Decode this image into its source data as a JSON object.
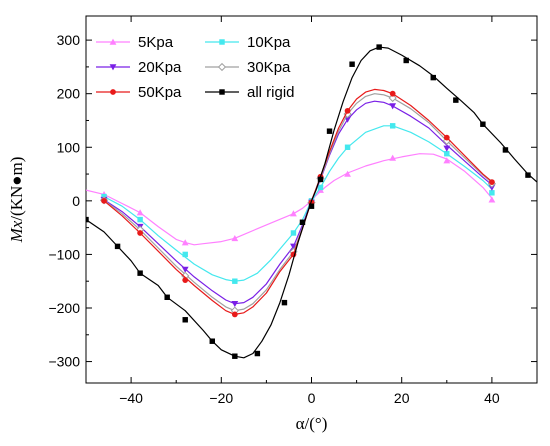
{
  "chart_data": {
    "type": "line",
    "xlabel": "α/(°)",
    "ylabel_italic": "Mx",
    "ylabel_rest": "/(KN●m)",
    "xlim": [
      -50,
      50
    ],
    "ylim": [
      -340,
      345
    ],
    "xticks": [
      -40,
      -20,
      0,
      20,
      40
    ],
    "yticks": [
      -300,
      -200,
      -100,
      0,
      100,
      200,
      300
    ],
    "grid": false,
    "legend_position": "top-left",
    "series": [
      {
        "name": "5Kpa",
        "color": "#ff80ff",
        "marker": "triangle-up",
        "curve": [
          [
            -50,
            20
          ],
          [
            -46,
            12
          ],
          [
            -42,
            -5
          ],
          [
            -38,
            -22
          ],
          [
            -34,
            -48
          ],
          [
            -30,
            -72
          ],
          [
            -28,
            -78
          ],
          [
            -26,
            -82
          ],
          [
            -24,
            -80
          ],
          [
            -20,
            -76
          ],
          [
            -17,
            -70
          ],
          [
            -12,
            -52
          ],
          [
            -8,
            -38
          ],
          [
            -4,
            -24
          ],
          [
            -2,
            -14
          ],
          [
            0,
            0
          ],
          [
            1,
            10
          ],
          [
            3,
            25
          ],
          [
            5,
            38
          ],
          [
            8,
            52
          ],
          [
            12,
            65
          ],
          [
            16,
            75
          ],
          [
            20,
            82
          ],
          [
            24,
            88
          ],
          [
            27,
            87
          ],
          [
            30,
            78
          ],
          [
            34,
            55
          ],
          [
            38,
            25
          ],
          [
            40,
            5
          ]
        ],
        "points": [
          [
            -46,
            12
          ],
          [
            -38,
            -22
          ],
          [
            -28,
            -78
          ],
          [
            -17,
            -70
          ],
          [
            -4,
            -24
          ],
          [
            0,
            0
          ],
          [
            2,
            20
          ],
          [
            8,
            50
          ],
          [
            18,
            80
          ],
          [
            30,
            75
          ],
          [
            40,
            2
          ]
        ]
      },
      {
        "name": "10Kpa",
        "color": "#44e8ee",
        "marker": "square",
        "curve": [
          [
            -46,
            8
          ],
          [
            -42,
            -10
          ],
          [
            -38,
            -35
          ],
          [
            -34,
            -65
          ],
          [
            -30,
            -92
          ],
          [
            -26,
            -118
          ],
          [
            -22,
            -138
          ],
          [
            -19,
            -147
          ],
          [
            -17,
            -150
          ],
          [
            -15,
            -148
          ],
          [
            -12,
            -135
          ],
          [
            -9,
            -110
          ],
          [
            -6,
            -80
          ],
          [
            -4,
            -60
          ],
          [
            -2,
            -35
          ],
          [
            0,
            0
          ],
          [
            2,
            25
          ],
          [
            4,
            55
          ],
          [
            6,
            80
          ],
          [
            8,
            100
          ],
          [
            12,
            128
          ],
          [
            16,
            140
          ],
          [
            18,
            140
          ],
          [
            22,
            128
          ],
          [
            26,
            110
          ],
          [
            30,
            88
          ],
          [
            34,
            64
          ],
          [
            38,
            38
          ],
          [
            40,
            22
          ]
        ],
        "points": [
          [
            -46,
            8
          ],
          [
            -38,
            -35
          ],
          [
            -28,
            -100
          ],
          [
            -17,
            -150
          ],
          [
            -4,
            -60
          ],
          [
            0,
            0
          ],
          [
            2,
            25
          ],
          [
            8,
            100
          ],
          [
            18,
            140
          ],
          [
            30,
            88
          ],
          [
            40,
            15
          ]
        ]
      },
      {
        "name": "20Kpa",
        "color": "#7a20e6",
        "marker": "triangle-down",
        "curve": [
          [
            -46,
            2
          ],
          [
            -42,
            -20
          ],
          [
            -38,
            -48
          ],
          [
            -34,
            -80
          ],
          [
            -30,
            -112
          ],
          [
            -26,
            -142
          ],
          [
            -22,
            -168
          ],
          [
            -19,
            -185
          ],
          [
            -17,
            -192
          ],
          [
            -15,
            -190
          ],
          [
            -13,
            -180
          ],
          [
            -10,
            -155
          ],
          [
            -7,
            -118
          ],
          [
            -4,
            -85
          ],
          [
            -2,
            -45
          ],
          [
            0,
            0
          ],
          [
            2,
            40
          ],
          [
            4,
            85
          ],
          [
            6,
            125
          ],
          [
            8,
            152
          ],
          [
            10,
            170
          ],
          [
            12,
            182
          ],
          [
            14,
            186
          ],
          [
            16,
            184
          ],
          [
            18,
            177
          ],
          [
            22,
            158
          ],
          [
            26,
            136
          ],
          [
            30,
            104
          ],
          [
            34,
            74
          ],
          [
            38,
            44
          ],
          [
            40,
            30
          ]
        ],
        "points": [
          [
            -46,
            2
          ],
          [
            -38,
            -48
          ],
          [
            -28,
            -128
          ],
          [
            -17,
            -192
          ],
          [
            -4,
            -85
          ],
          [
            0,
            -3
          ],
          [
            2,
            40
          ],
          [
            8,
            152
          ],
          [
            18,
            177
          ],
          [
            30,
            98
          ],
          [
            40,
            25
          ]
        ]
      },
      {
        "name": "30Kpa",
        "color": "#a0a0a0",
        "marker": "diamond-open",
        "curve": [
          [
            -46,
            1
          ],
          [
            -42,
            -24
          ],
          [
            -38,
            -54
          ],
          [
            -34,
            -88
          ],
          [
            -30,
            -122
          ],
          [
            -26,
            -152
          ],
          [
            -22,
            -180
          ],
          [
            -19,
            -198
          ],
          [
            -17,
            -205
          ],
          [
            -15,
            -202
          ],
          [
            -13,
            -192
          ],
          [
            -10,
            -166
          ],
          [
            -7,
            -128
          ],
          [
            -4,
            -95
          ],
          [
            -2,
            -50
          ],
          [
            0,
            0
          ],
          [
            2,
            42
          ],
          [
            4,
            88
          ],
          [
            6,
            130
          ],
          [
            8,
            162
          ],
          [
            10,
            182
          ],
          [
            12,
            195
          ],
          [
            14,
            200
          ],
          [
            16,
            198
          ],
          [
            18,
            192
          ],
          [
            22,
            172
          ],
          [
            26,
            146
          ],
          [
            30,
            112
          ],
          [
            34,
            80
          ],
          [
            38,
            48
          ],
          [
            40,
            34
          ]
        ],
        "points": [
          [
            -46,
            1
          ],
          [
            -38,
            -54
          ],
          [
            -28,
            -140
          ],
          [
            -17,
            -205
          ],
          [
            -4,
            -95
          ],
          [
            0,
            -3
          ],
          [
            2,
            42
          ],
          [
            8,
            162
          ],
          [
            18,
            192
          ],
          [
            30,
            112
          ],
          [
            40,
            32
          ]
        ]
      },
      {
        "name": "50Kpa",
        "color": "#e81a1a",
        "marker": "circle",
        "curve": [
          [
            -46,
            0
          ],
          [
            -42,
            -28
          ],
          [
            -38,
            -60
          ],
          [
            -34,
            -94
          ],
          [
            -30,
            -128
          ],
          [
            -26,
            -158
          ],
          [
            -22,
            -186
          ],
          [
            -19,
            -205
          ],
          [
            -17,
            -212
          ],
          [
            -15,
            -209
          ],
          [
            -13,
            -198
          ],
          [
            -10,
            -172
          ],
          [
            -7,
            -132
          ],
          [
            -4,
            -100
          ],
          [
            -2,
            -52
          ],
          [
            0,
            0
          ],
          [
            2,
            45
          ],
          [
            4,
            92
          ],
          [
            6,
            136
          ],
          [
            8,
            168
          ],
          [
            10,
            190
          ],
          [
            12,
            203
          ],
          [
            14,
            208
          ],
          [
            16,
            206
          ],
          [
            18,
            200
          ],
          [
            22,
            178
          ],
          [
            26,
            150
          ],
          [
            30,
            118
          ],
          [
            34,
            84
          ],
          [
            38,
            50
          ],
          [
            40,
            36
          ]
        ],
        "points": [
          [
            -46,
            0
          ],
          [
            -38,
            -60
          ],
          [
            -28,
            -148
          ],
          [
            -17,
            -212
          ],
          [
            -4,
            -100
          ],
          [
            0,
            -3
          ],
          [
            2,
            45
          ],
          [
            8,
            168
          ],
          [
            18,
            200
          ],
          [
            30,
            118
          ],
          [
            40,
            35
          ]
        ]
      },
      {
        "name": "all rigid",
        "color": "#000000",
        "marker": "square",
        "curve": [
          [
            -50,
            -35
          ],
          [
            -46,
            -58
          ],
          [
            -43,
            -85
          ],
          [
            -40,
            -112
          ],
          [
            -38,
            -135
          ],
          [
            -34,
            -158
          ],
          [
            -32,
            -180
          ],
          [
            -28,
            -205
          ],
          [
            -24,
            -242
          ],
          [
            -22,
            -262
          ],
          [
            -20,
            -278
          ],
          [
            -17,
            -290
          ],
          [
            -15,
            -293
          ],
          [
            -13,
            -285
          ],
          [
            -11,
            -262
          ],
          [
            -9,
            -232
          ],
          [
            -7,
            -190
          ],
          [
            -5,
            -138
          ],
          [
            -3,
            -78
          ],
          [
            -1,
            -25
          ],
          [
            0,
            0
          ],
          [
            1,
            20
          ],
          [
            3,
            70
          ],
          [
            5,
            132
          ],
          [
            7,
            185
          ],
          [
            9,
            230
          ],
          [
            11,
            262
          ],
          [
            13,
            280
          ],
          [
            15,
            287
          ],
          [
            17,
            285
          ],
          [
            20,
            272
          ],
          [
            24,
            252
          ],
          [
            27,
            233
          ],
          [
            30,
            210
          ],
          [
            33,
            188
          ],
          [
            36,
            165
          ],
          [
            38,
            143
          ],
          [
            42,
            108
          ],
          [
            45,
            78
          ],
          [
            48,
            50
          ],
          [
            50,
            35
          ]
        ],
        "points": [
          [
            -50,
            -35
          ],
          [
            -43,
            -85
          ],
          [
            -38,
            -135
          ],
          [
            -32,
            -180
          ],
          [
            -28,
            -222
          ],
          [
            -22,
            -262
          ],
          [
            -17,
            -290
          ],
          [
            -12,
            -285
          ],
          [
            -6,
            -190
          ],
          [
            -2,
            -40
          ],
          [
            0,
            -10
          ],
          [
            2,
            40
          ],
          [
            4,
            130
          ],
          [
            9,
            255
          ],
          [
            15,
            287
          ],
          [
            21,
            262
          ],
          [
            27,
            230
          ],
          [
            32,
            188
          ],
          [
            38,
            143
          ],
          [
            43,
            95
          ],
          [
            48,
            48
          ]
        ]
      }
    ]
  }
}
